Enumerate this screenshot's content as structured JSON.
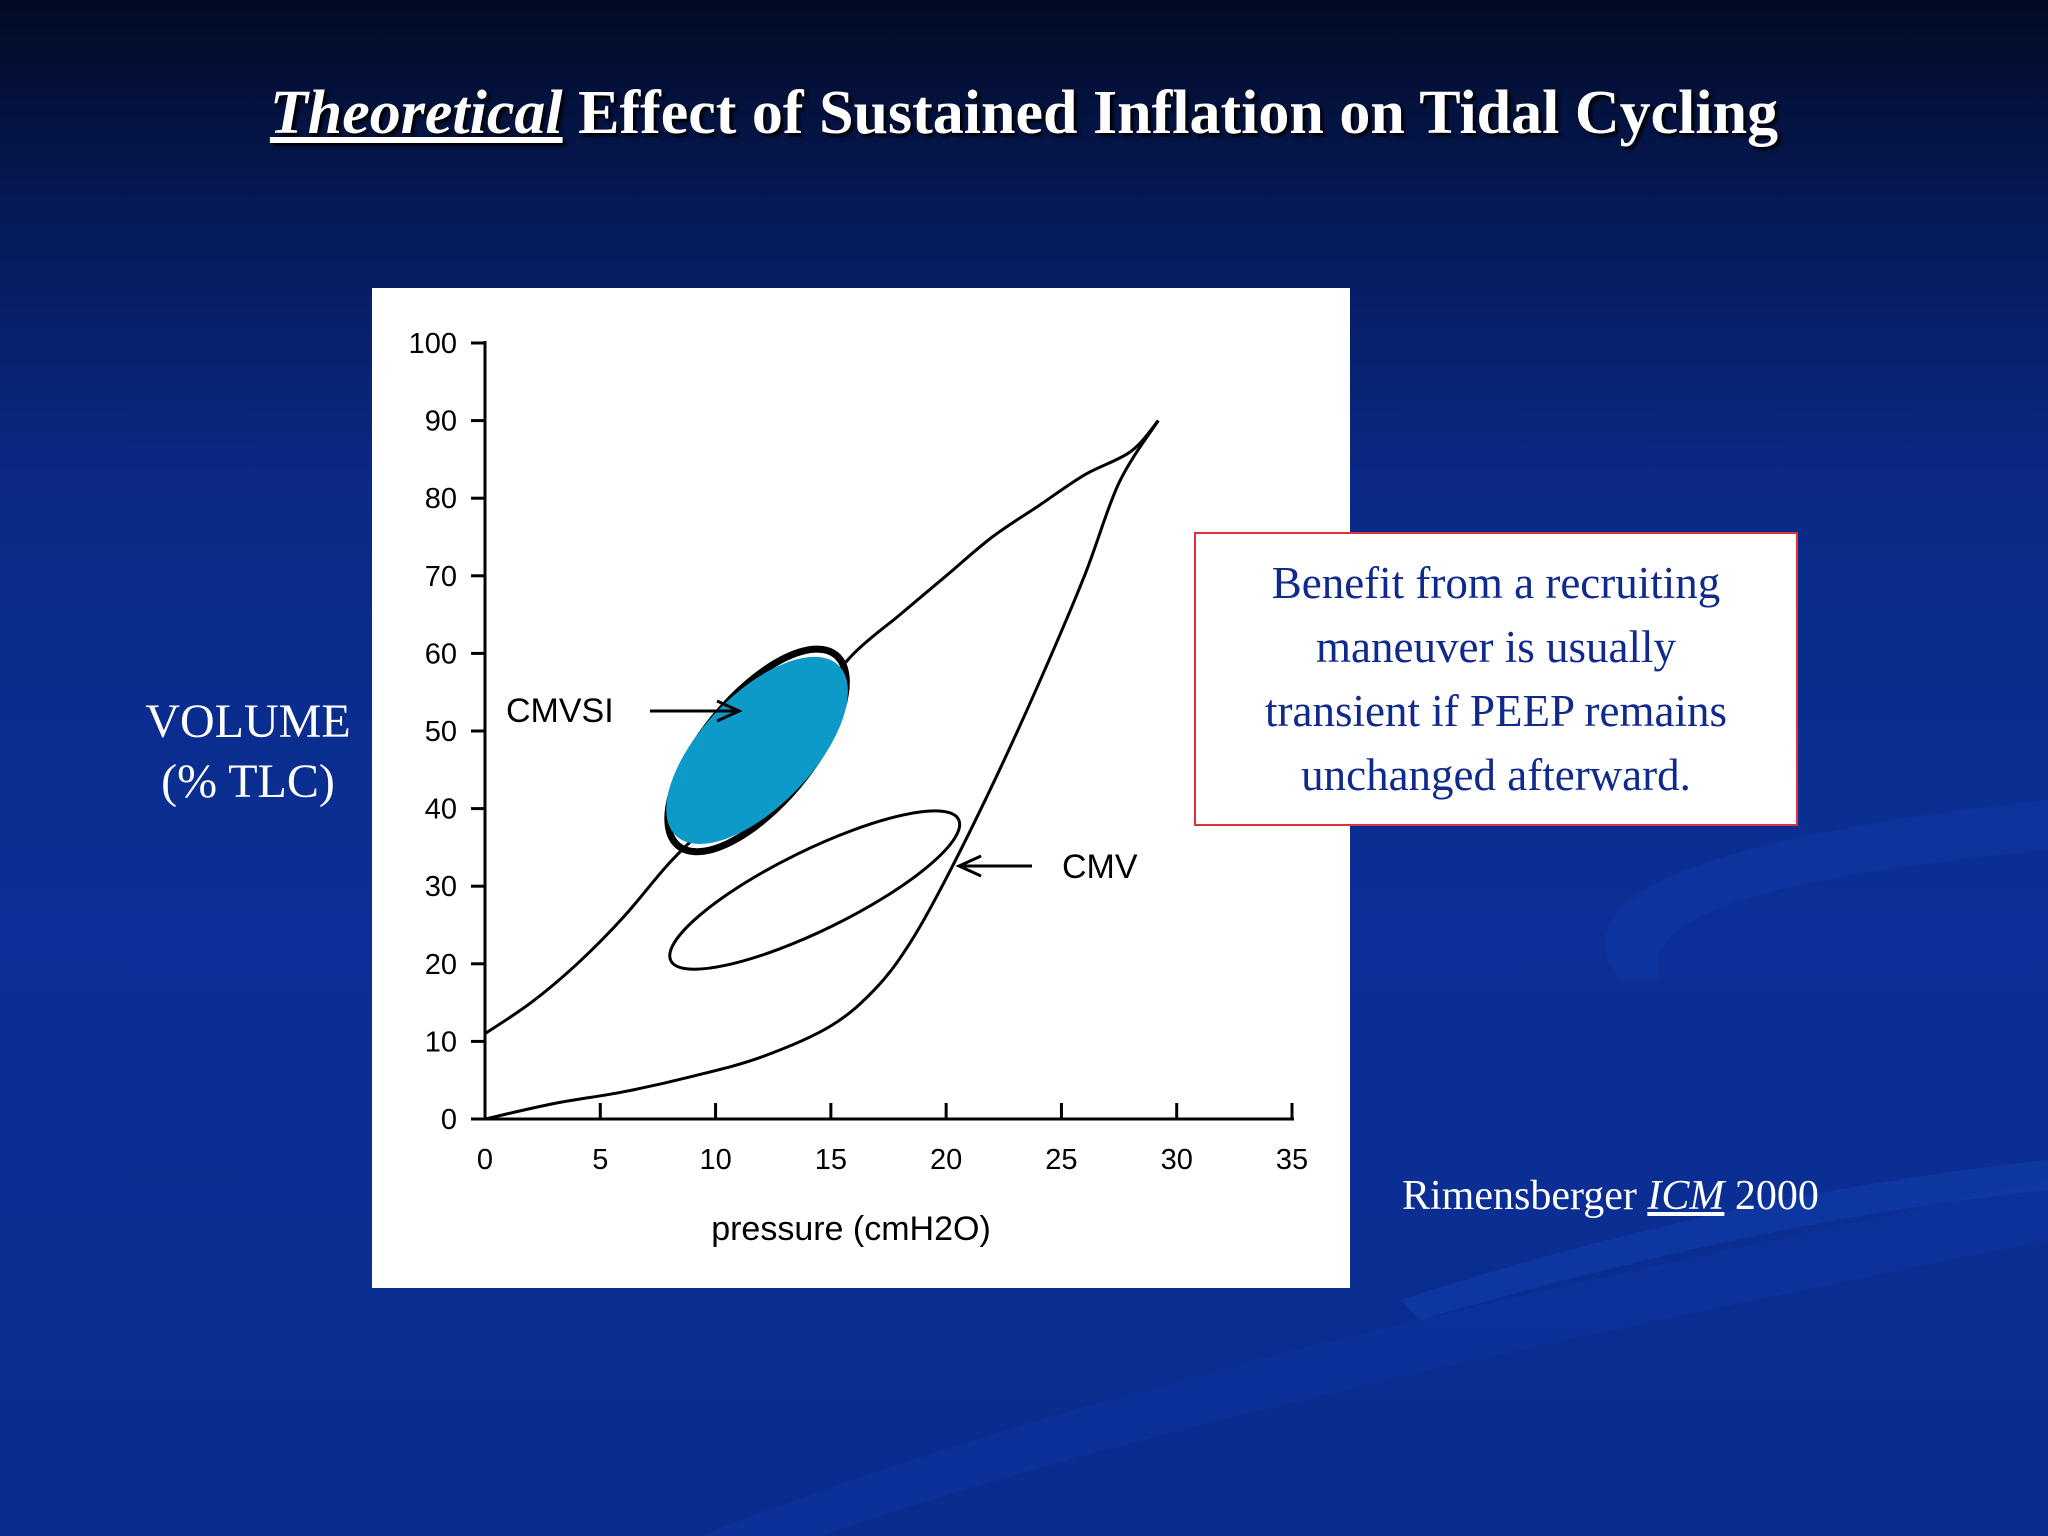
{
  "slide": {
    "title_emphasis": "Theoretical",
    "title_rest": " Effect of Sustained Inflation on Tidal Cycling",
    "y_axis_label_line1": "VOLUME",
    "y_axis_label_line2": "(% TLC)",
    "callout_lines": [
      "Benefit from a recruiting",
      "maneuver is usually",
      "transient if PEEP remains",
      "unchanged afterward."
    ],
    "citation_author": "Rimensberger ",
    "citation_journal": "ICM",
    "citation_year": " 2000",
    "colors": {
      "background": "#0a2c8f",
      "callout_border": "#e0303a",
      "callout_text": "#102a8c",
      "cmvsi_fill": "#0e9ac8"
    }
  },
  "chart_data": {
    "type": "line",
    "xlabel": "pressure (cmH2O)",
    "ylabel": "VOLUME (% TLC)",
    "xlim": [
      0,
      35
    ],
    "ylim": [
      0,
      100
    ],
    "xticks": [
      0,
      5,
      10,
      15,
      20,
      25,
      30,
      35
    ],
    "yticks": [
      0,
      10,
      20,
      30,
      40,
      50,
      60,
      70,
      80,
      90,
      100
    ],
    "grid": false,
    "series": [
      {
        "name": "",
        "x": [
          0,
          2,
          4,
          6,
          8,
          10,
          12,
          14,
          16,
          18,
          20,
          22,
          24,
          26,
          28,
          29.2
        ],
        "y": [
          11,
          15,
          20,
          26,
          33,
          39,
          46,
          53,
          60,
          65,
          70,
          75,
          79,
          83,
          86,
          90
        ]
      },
      {
        "name": "",
        "x": [
          0,
          3,
          6,
          9,
          12,
          15,
          17,
          18.5,
          20,
          22,
          24,
          26,
          27.5,
          29.2
        ],
        "y": [
          0,
          2,
          3.5,
          5.5,
          8,
          12,
          17,
          23,
          31,
          43,
          56,
          70,
          82,
          90
        ]
      }
    ],
    "annotations": [
      {
        "label": "CMVSI",
        "target": "inflated tidal loop",
        "points_to": {
          "x": 10.5,
          "y": 52
        }
      },
      {
        "label": "CMV",
        "target": "tidal loop",
        "points_to": {
          "x": 20.3,
          "y": 32
        }
      }
    ],
    "loops": [
      {
        "name": "CMV",
        "center": {
          "x": 14.3,
          "y": 29.5
        },
        "from": {
          "x": 9.2,
          "y": 22
        },
        "to": {
          "x": 19.5,
          "y": 37
        }
      },
      {
        "name": "CMVSI",
        "center": {
          "x": 11.8,
          "y": 47.5
        },
        "from": {
          "x": 9.2,
          "y": 38
        },
        "to": {
          "x": 14.5,
          "y": 57
        }
      }
    ]
  }
}
